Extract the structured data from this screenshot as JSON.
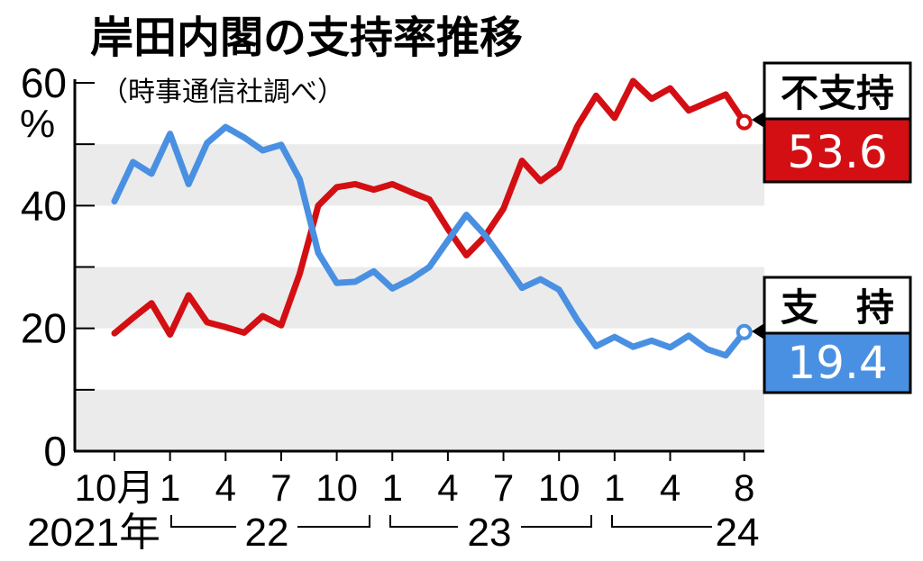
{
  "title": "岸田内閣の支持率推移",
  "subtitle": "（時事通信社調べ）",
  "chart_data": {
    "type": "line",
    "y_unit": "%",
    "ylim": [
      0,
      60
    ],
    "y_ticks": [
      "0",
      "20",
      "40",
      "60"
    ],
    "x_labels": [
      {
        "label": "10月",
        "index": 0
      },
      {
        "label": "1",
        "index": 3
      },
      {
        "label": "4",
        "index": 6
      },
      {
        "label": "7",
        "index": 9
      },
      {
        "label": "10",
        "index": 12
      },
      {
        "label": "1",
        "index": 15
      },
      {
        "label": "4",
        "index": 18
      },
      {
        "label": "7",
        "index": 21
      },
      {
        "label": "10",
        "index": 24
      },
      {
        "label": "1",
        "index": 27
      },
      {
        "label": "4",
        "index": 30
      },
      {
        "label": "8",
        "index": 34
      }
    ],
    "year_labels": {
      "y2021": "2021年",
      "y2022": "22",
      "y2023": "23",
      "y2024": "24"
    },
    "months": [
      "2021-10",
      "2021-11",
      "2021-12",
      "2022-01",
      "2022-02",
      "2022-03",
      "2022-04",
      "2022-05",
      "2022-06",
      "2022-07",
      "2022-08",
      "2022-09",
      "2022-10",
      "2022-11",
      "2022-12",
      "2023-01",
      "2023-02",
      "2023-03",
      "2023-04",
      "2023-05",
      "2023-06",
      "2023-07",
      "2023-08",
      "2023-09",
      "2023-10",
      "2023-11",
      "2023-12",
      "2024-01",
      "2024-02",
      "2024-03",
      "2024-04",
      "2024-05",
      "2024-06",
      "2024-07",
      "2024-08"
    ],
    "series": [
      {
        "name": "不支持",
        "color": "#d30f14",
        "latest_label": "53.6",
        "values": [
          19.2,
          21.7,
          24.1,
          19.0,
          25.4,
          21.0,
          20.2,
          19.3,
          22.0,
          20.5,
          28.9,
          40.0,
          43.0,
          43.5,
          42.6,
          43.5,
          42.2,
          41.0,
          36.2,
          31.9,
          35.0,
          39.5,
          47.3,
          44.0,
          46.2,
          53.0,
          57.9,
          54.3,
          60.3,
          57.4,
          59.1,
          55.5,
          56.8,
          58.1,
          53.6
        ]
      },
      {
        "name": "支　持",
        "color": "#4a90e2",
        "latest_label": "19.4",
        "values": [
          40.7,
          47.1,
          45.2,
          51.7,
          43.5,
          50.2,
          52.8,
          51.1,
          49.0,
          49.9,
          44.3,
          32.3,
          27.4,
          27.6,
          29.3,
          26.5,
          28.0,
          30.0,
          34.3,
          38.5,
          35.2,
          31.0,
          26.6,
          28.0,
          26.3,
          21.3,
          17.1,
          18.6,
          17.0,
          18.0,
          16.9,
          18.8,
          16.6,
          15.6,
          19.4
        ]
      }
    ],
    "grid": "horizontal bands"
  }
}
